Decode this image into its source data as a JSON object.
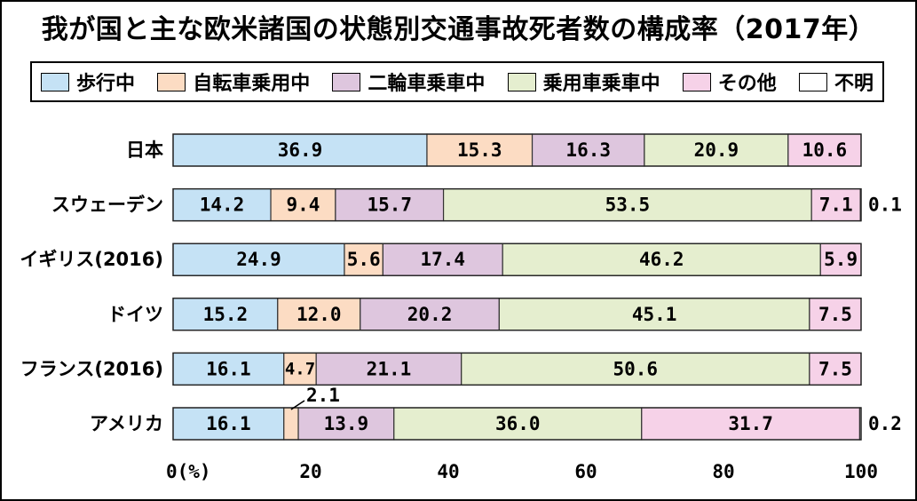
{
  "chart_data": {
    "type": "bar",
    "orientation": "horizontal",
    "stacked": true,
    "title": "我が国と主な欧米諸国の状態別交通事故死者数の構成率（2017年）",
    "categories": [
      "日本",
      "スウェーデン",
      "イギリス(2016)",
      "ドイツ",
      "フランス(2016)",
      "アメリカ"
    ],
    "series": [
      {
        "name": "歩行中",
        "color": "#c5e2f5",
        "values": [
          36.9,
          14.2,
          24.9,
          15.2,
          16.1,
          16.1
        ]
      },
      {
        "name": "自転車乗用中",
        "color": "#fcdcc3",
        "values": [
          15.3,
          9.4,
          5.6,
          12.0,
          4.7,
          2.1
        ]
      },
      {
        "name": "二輪車乗車中",
        "color": "#dec6de",
        "values": [
          16.3,
          15.7,
          17.4,
          20.2,
          21.1,
          13.9
        ]
      },
      {
        "name": "乗用車乗車中",
        "color": "#e5eecf",
        "values": [
          20.9,
          53.5,
          46.2,
          45.1,
          50.6,
          36.0
        ]
      },
      {
        "name": "その他",
        "color": "#f6d2e8",
        "values": [
          10.6,
          7.1,
          5.9,
          7.5,
          7.5,
          31.7
        ]
      },
      {
        "name": "不明",
        "color": "#ffffff",
        "values": [
          0,
          0.1,
          0,
          0,
          0,
          0.2
        ]
      }
    ],
    "data_labels": [
      [
        "36.9",
        "15.3",
        "16.3",
        "20.9",
        "10.6",
        ""
      ],
      [
        "14.2",
        "9.4",
        "15.7",
        "53.5",
        "7.1",
        "0.1"
      ],
      [
        "24.9",
        "5.6",
        "17.4",
        "46.2",
        "5.9",
        ""
      ],
      [
        "15.2",
        "12.0",
        "20.2",
        "45.1",
        "7.5",
        ""
      ],
      [
        "16.1",
        "4.7",
        "21.1",
        "50.6",
        "7.5",
        ""
      ],
      [
        "16.1",
        "2.1",
        "13.9",
        "36.0",
        "31.7",
        "0.2"
      ]
    ],
    "xlim": [
      0,
      100
    ],
    "xticks": [
      "0(%)",
      "20",
      "40",
      "60",
      "80",
      "100"
    ],
    "legend_position": "top",
    "grid": false
  }
}
